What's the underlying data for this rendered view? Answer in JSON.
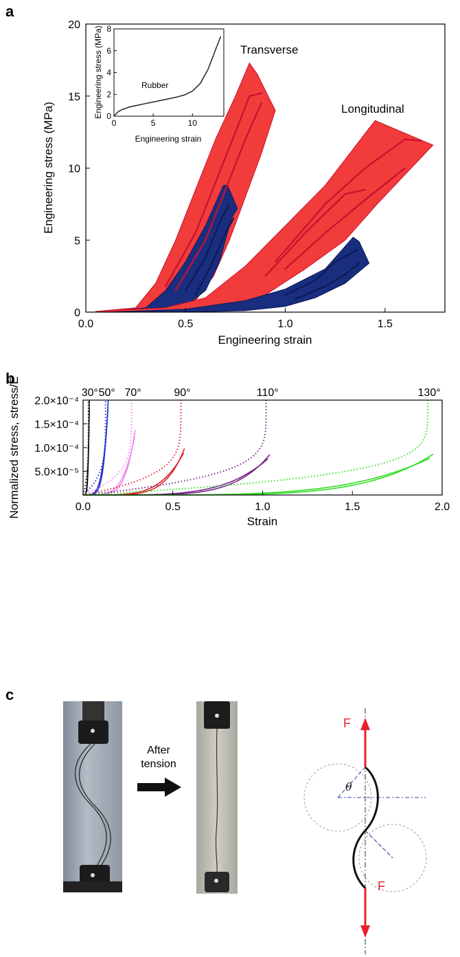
{
  "panel_labels": {
    "a": "a",
    "b": "b",
    "c": "c"
  },
  "chart_data": [
    {
      "type": "area",
      "xlabel": "Engineering strain",
      "ylabel": "Engineering stress (MPa)",
      "xlim": [
        0,
        1.8
      ],
      "ylim": [
        0,
        20
      ],
      "x_ticks": [
        "0.0",
        "0.5",
        "1.0",
        "1.5"
      ],
      "x_tick_values": [
        0,
        0.5,
        1.0,
        1.5
      ],
      "y_ticks": [
        "0",
        "5",
        "10",
        "15",
        "20"
      ],
      "y_tick_values": [
        0,
        5,
        10,
        15,
        20
      ],
      "annotations": {
        "transverse": "Transverse",
        "longitudinal": "Longitudinal"
      },
      "colors": {
        "red": "#f23b3b",
        "red_edge": "#c8102e",
        "blue": "#1a2e80",
        "blue_edge": "#0d1a55"
      },
      "bands": [
        {
          "color": "red",
          "upper": [
            [
              0.05,
              0.05
            ],
            [
              0.25,
              0.3
            ],
            [
              0.35,
              2
            ],
            [
              0.45,
              5
            ],
            [
              0.55,
              8.5
            ],
            [
              0.65,
              12
            ],
            [
              0.75,
              15
            ],
            [
              0.82,
              17.3
            ],
            [
              0.86,
              16.5
            ]
          ],
          "lower": [
            [
              0.95,
              14
            ],
            [
              0.88,
              11
            ],
            [
              0.8,
              8
            ],
            [
              0.72,
              5
            ],
            [
              0.64,
              2.5
            ],
            [
              0.55,
              0.8
            ],
            [
              0.45,
              0.2
            ],
            [
              0.3,
              0.05
            ],
            [
              0.05,
              0
            ]
          ]
        },
        {
          "color": "blue",
          "upper": [
            [
              0.1,
              0.05
            ],
            [
              0.3,
              0.3
            ],
            [
              0.4,
              1.5
            ],
            [
              0.5,
              3.5
            ],
            [
              0.6,
              6
            ],
            [
              0.69,
              8.8
            ],
            [
              0.71,
              8.8
            ],
            [
              0.76,
              7.2
            ]
          ],
          "lower": [
            [
              0.73,
              6.5
            ],
            [
              0.67,
              3.5
            ],
            [
              0.6,
              1.5
            ],
            [
              0.5,
              0.4
            ],
            [
              0.38,
              0.1
            ],
            [
              0.1,
              0
            ]
          ]
        },
        {
          "color": "red",
          "upper": [
            [
              0.1,
              0.1
            ],
            [
              0.4,
              0.3
            ],
            [
              0.6,
              1
            ],
            [
              0.8,
              3.2
            ],
            [
              1.0,
              6
            ],
            [
              1.2,
              8.8
            ],
            [
              1.45,
              13.3
            ],
            [
              1.74,
              11.6
            ]
          ],
          "lower": [
            [
              1.46,
              7.5
            ],
            [
              1.3,
              5
            ],
            [
              1.1,
              3
            ],
            [
              0.9,
              1.2
            ],
            [
              0.7,
              0.2
            ],
            [
              0.4,
              0
            ],
            [
              0.1,
              0
            ]
          ]
        },
        {
          "color": "blue",
          "upper": [
            [
              0.1,
              0
            ],
            [
              0.5,
              0.2
            ],
            [
              0.8,
              0.8
            ],
            [
              1.0,
              1.6
            ],
            [
              1.2,
              3
            ],
            [
              1.34,
              5.2
            ],
            [
              1.37,
              4.9
            ],
            [
              1.42,
              3.4
            ]
          ],
          "lower": [
            [
              1.3,
              2
            ],
            [
              1.15,
              1
            ],
            [
              1.0,
              0.4
            ],
            [
              0.8,
              0.1
            ],
            [
              0.5,
              0
            ],
            [
              0.1,
              0
            ]
          ]
        }
      ],
      "inner_lines": [
        {
          "color": "red",
          "points": [
            [
              0.4,
              1.8
            ],
            [
              0.55,
              5.5
            ],
            [
              0.65,
              9
            ],
            [
              0.75,
              12.5
            ],
            [
              0.82,
              15
            ],
            [
              0.88,
              15.2
            ]
          ]
        },
        {
          "color": "red",
          "points": [
            [
              0.45,
              1.5
            ],
            [
              0.6,
              5
            ],
            [
              0.7,
              8.5
            ],
            [
              0.8,
              12
            ],
            [
              0.88,
              14.5
            ]
          ]
        },
        {
          "color": "blue",
          "points": [
            [
              0.5,
              1.5
            ],
            [
              0.6,
              3.8
            ],
            [
              0.68,
              6.5
            ],
            [
              0.72,
              7.5
            ]
          ]
        },
        {
          "color": "blue",
          "points": [
            [
              0.55,
              1.2
            ],
            [
              0.62,
              3
            ],
            [
              0.7,
              5.5
            ],
            [
              0.74,
              6.5
            ]
          ]
        },
        {
          "color": "red",
          "points": [
            [
              0.9,
              2.5
            ],
            [
              1.1,
              5.5
            ],
            [
              1.3,
              8.2
            ],
            [
              1.4,
              8.5
            ]
          ]
        },
        {
          "color": "red",
          "points": [
            [
              0.95,
              3.5
            ],
            [
              1.2,
              7.5
            ],
            [
              1.4,
              10
            ],
            [
              1.6,
              12
            ],
            [
              1.68,
              11.9
            ]
          ]
        },
        {
          "color": "red",
          "points": [
            [
              1.0,
              3
            ],
            [
              1.2,
              5.5
            ],
            [
              1.4,
              7.8
            ],
            [
              1.6,
              10
            ]
          ]
        },
        {
          "color": "blue",
          "points": [
            [
              1.0,
              1.2
            ],
            [
              1.15,
              2.2
            ],
            [
              1.25,
              3.5
            ],
            [
              1.36,
              4.3
            ]
          ]
        },
        {
          "color": "blue",
          "points": [
            [
              1.05,
              0.9
            ],
            [
              1.2,
              1.8
            ],
            [
              1.3,
              2.6
            ],
            [
              1.37,
              3.4
            ]
          ]
        }
      ],
      "inset": {
        "type": "line",
        "label": "Rubber",
        "xlabel": "Engineering strain",
        "ylabel": "Engineering stress (MPa)",
        "xlim": [
          0,
          14
        ],
        "ylim": [
          0,
          8
        ],
        "x_ticks": [
          "0",
          "5",
          "10"
        ],
        "x_tick_values": [
          0,
          5,
          10
        ],
        "y_ticks": [
          "0",
          "2",
          "4",
          "6",
          "8"
        ],
        "y_tick_values": [
          0,
          2,
          4,
          6,
          8
        ],
        "x": [
          0,
          0.5,
          1,
          2,
          3,
          4,
          5,
          6,
          7,
          8,
          9,
          10,
          11,
          12,
          13,
          13.6
        ],
        "y": [
          0,
          0.4,
          0.6,
          0.85,
          1.0,
          1.15,
          1.3,
          1.45,
          1.6,
          1.75,
          1.95,
          2.3,
          3.0,
          4.3,
          6.2,
          7.3
        ]
      }
    },
    {
      "type": "line",
      "xlabel": "Strain",
      "ylabel": "Normalized stress, stress/E",
      "xlim": [
        0,
        2.0
      ],
      "ylim": [
        0,
        0.0002
      ],
      "x_ticks": [
        "0.0",
        "0.5",
        "1.0",
        "1.5",
        "2.0"
      ],
      "x_tick_values": [
        0,
        0.5,
        1.0,
        1.5,
        2.0
      ],
      "y_ticks": [
        "5.0×10⁻⁵",
        "1.0×10⁻⁴",
        "1.5×10⁻⁴",
        "2.0×10⁻⁴"
      ],
      "y_tick_values": [
        5e-05,
        0.0001,
        0.00015,
        0.0002
      ],
      "series": [
        {
          "name": "30°",
          "color": "#111111",
          "asymptote": 0.03,
          "solid_end": 0.035,
          "solid_top": 0.0002
        },
        {
          "name": "50°",
          "color": "#2233cc",
          "asymptote": 0.125,
          "solid_end": 0.14,
          "solid_top": 0.0002
        },
        {
          "name": "70°",
          "color": "#ee88ee",
          "asymptote": 0.27,
          "solid_end": 0.29,
          "solid_top": 0.000137
        },
        {
          "name": "90°",
          "color": "#dd2222",
          "asymptote": 0.545,
          "solid_end": 0.565,
          "solid_top": 9.8e-05
        },
        {
          "name": "110°",
          "color": "#772288",
          "asymptote": 1.02,
          "solid_end": 1.04,
          "solid_top": 8.5e-05
        },
        {
          "name": "130°",
          "color": "#33dd22",
          "asymptote": 1.92,
          "solid_end": 1.95,
          "solid_top": 8.6e-05
        }
      ]
    }
  ],
  "panel_c": {
    "arrow_label": "After\ntension",
    "arrow_line1": "After",
    "arrow_line2": "tension",
    "force_top": "F",
    "force_bottom": "F",
    "angle": "θ",
    "colors": {
      "force": "#e8202a",
      "curve": "#111111",
      "circle": "#999999",
      "axis": "#333333",
      "guide": "#3344aa"
    }
  }
}
